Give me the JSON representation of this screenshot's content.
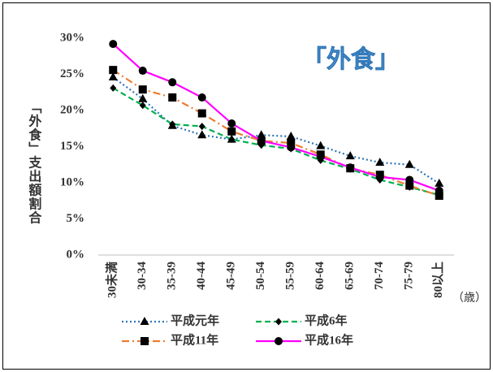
{
  "chart_data": {
    "type": "line",
    "annotation": "「外食」",
    "y_label": "「外食」支出額割合",
    "x_label": "（歳）",
    "categories": [
      "30未満",
      "30-34",
      "35-39",
      "40-44",
      "45-49",
      "50-54",
      "55-59",
      "60-64",
      "65-69",
      "70-74",
      "75-79",
      "80以上"
    ],
    "series": [
      {
        "name": "平成元年",
        "color": "#2e75b6",
        "style": "dotted",
        "marker": "triangle",
        "values": [
          24.6,
          21.6,
          17.9,
          16.6,
          16.0,
          16.6,
          16.4,
          15.1,
          13.7,
          12.8,
          12.5,
          9.9
        ]
      },
      {
        "name": "平成6年",
        "color": "#00b050",
        "style": "dashed",
        "marker": "diamond",
        "values": [
          23.1,
          20.7,
          18.1,
          17.8,
          16.0,
          15.2,
          14.7,
          13.1,
          11.9,
          10.4,
          9.4,
          8.3
        ]
      },
      {
        "name": "平成11年",
        "color": "#ed7d31",
        "style": "dashdot",
        "marker": "square",
        "values": [
          25.6,
          22.9,
          21.8,
          19.6,
          17.1,
          15.8,
          15.5,
          13.9,
          12.0,
          11.1,
          9.6,
          8.2
        ]
      },
      {
        "name": "平成16年",
        "color": "#ff00ff",
        "style": "solid",
        "marker": "circle",
        "values": [
          29.2,
          25.5,
          23.9,
          21.8,
          18.2,
          15.8,
          14.9,
          13.6,
          12.1,
          10.8,
          10.4,
          8.9
        ]
      }
    ],
    "ylim": [
      0,
      30
    ],
    "yticks": [
      {
        "value": 0,
        "label": "0%"
      },
      {
        "value": 5,
        "label": "5%"
      },
      {
        "value": 10,
        "label": "10%"
      },
      {
        "value": 15,
        "label": "15%"
      },
      {
        "value": 20,
        "label": "20%"
      },
      {
        "value": 25,
        "label": "25%"
      },
      {
        "value": 30,
        "label": "30%"
      }
    ],
    "grid": false,
    "legend": "bottom"
  }
}
